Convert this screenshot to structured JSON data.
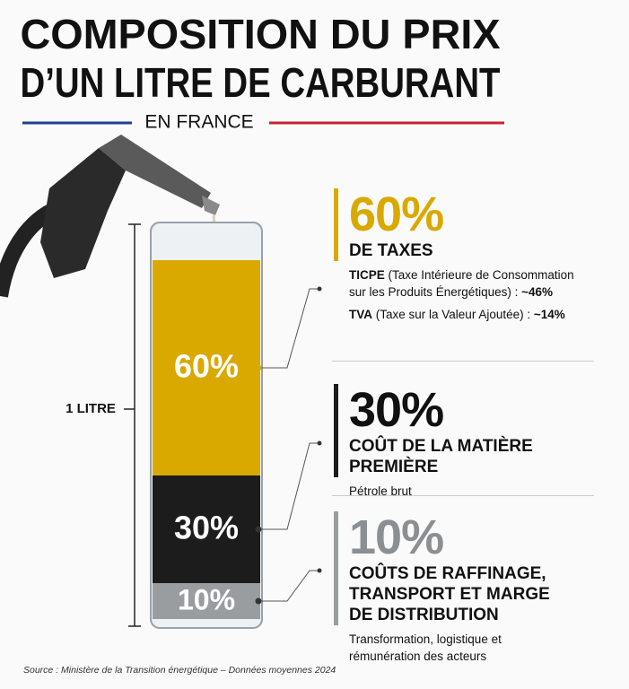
{
  "chart_data": {
    "type": "stacked_bar",
    "title": [
      "COMPOSITION DU PRIX",
      "D’UN LITRE DE CARBURANT"
    ],
    "subtitle": "EN FRANCE",
    "axis_label": "1 LITRE",
    "ylim": [
      0,
      100
    ],
    "series": [
      {
        "name": "DE TAXES",
        "color": "#d9a900",
        "values": [
          60
        ],
        "value_labels": [
          "60%"
        ],
        "details": [
          {
            "abbr": "TICPE",
            "text": "(Taxe Intérieure de Consommation sur les Produits Énergétiques) :",
            "share": "~46%"
          },
          {
            "abbr": "TVA",
            "text": "(Taxe sur la Valeur Ajoutée) :",
            "share": "~14%"
          }
        ]
      },
      {
        "name": "COÛT DE LA MATIÈRE PREMIÈRE",
        "color": "#1c1c1c",
        "values": [
          30
        ],
        "value_labels": [
          "30%"
        ],
        "description": "Pétrole brut"
      },
      {
        "name": "COÛTS DE RAFFINAGE, TRANSPORT ET MARGE DE DISTRIBUTION",
        "color": "#9a9da0",
        "values": [
          10
        ],
        "value_labels": [
          "10%"
        ],
        "description": "Transformation, logistique et rémunération des acteurs"
      }
    ],
    "source": "Source : Ministère de la Transition énergétique – Données moyennes 2024"
  }
}
